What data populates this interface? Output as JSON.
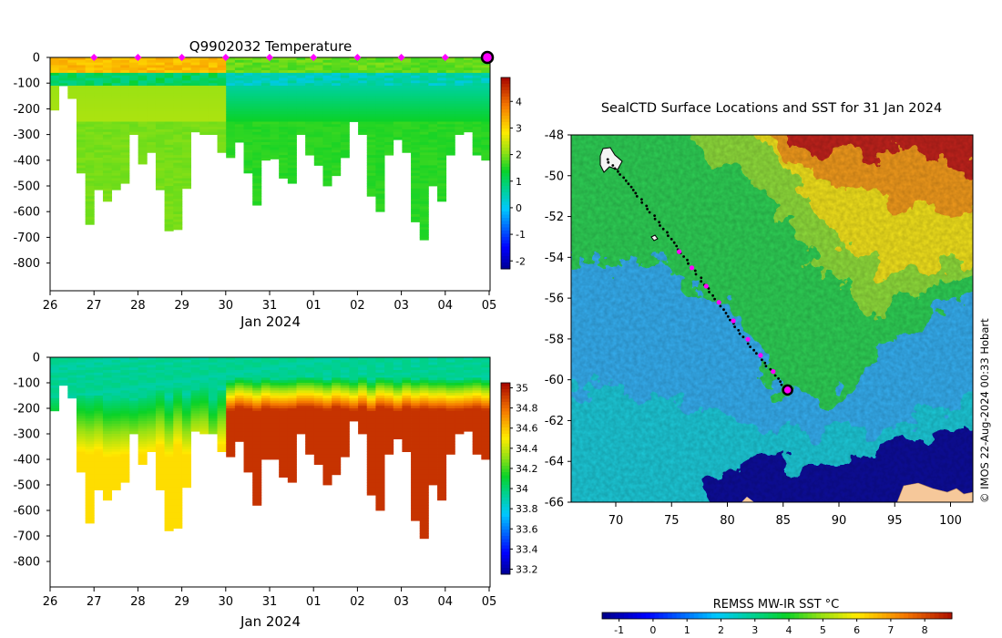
{
  "chart_data": [
    {
      "type": "heatmap",
      "title": "Q9902032  Temperature",
      "xlabel": "Jan 2024",
      "x_ticks": [
        "26",
        "27",
        "28",
        "29",
        "30",
        "31",
        "01",
        "02",
        "03",
        "04",
        "05"
      ],
      "y_ticks": [
        "0",
        "-100",
        "-200",
        "-300",
        "-400",
        "-500",
        "-600",
        "-700",
        "-800"
      ],
      "ylim": [
        -900,
        0
      ],
      "colorbar": {
        "ticks": [
          "4",
          "3",
          "2",
          "1",
          "0",
          "-1",
          "-2"
        ],
        "min": -2.3,
        "max": 4.9
      },
      "profile_depths": [
        -205,
        -110,
        -160,
        -450,
        -650,
        -515,
        -560,
        -515,
        -490,
        -300,
        -415,
        -370,
        -515,
        -675,
        -670,
        -510,
        -290,
        -300,
        -300,
        -370,
        -390,
        -330,
        -450,
        -575,
        -400,
        -395,
        -470,
        -490,
        -300,
        -380,
        -420,
        -500,
        -460,
        -390,
        -250,
        -300,
        -540,
        -600,
        -380,
        -320,
        -370,
        -640,
        -710,
        -500,
        -560,
        -380,
        -300,
        -290,
        -380,
        -400
      ],
      "segments": [
        {
          "days": [
            0,
            4.0
          ],
          "surface_temp": 3.3,
          "layer_temp": 1.8,
          "deep_temp": 2.0,
          "min_temp": 1.1
        },
        {
          "days": [
            4.0,
            9.9
          ],
          "surface_temp": 1.9,
          "layer_temp": 0.3,
          "deep_temp": 1.6,
          "min_temp": 0.5
        }
      ],
      "surface_markers": [
        "27",
        "28",
        "29",
        "30",
        "31",
        "01",
        "02",
        "03",
        "04"
      ],
      "current_marker": "05"
    },
    {
      "type": "heatmap",
      "title": "",
      "xlabel": "Jan 2024",
      "x_ticks": [
        "26",
        "27",
        "28",
        "29",
        "30",
        "31",
        "01",
        "02",
        "03",
        "04",
        "05"
      ],
      "y_ticks": [
        "0",
        "-100",
        "-200",
        "-300",
        "-400",
        "-500",
        "-600",
        "-700",
        "-800"
      ],
      "ylim": [
        -900,
        0
      ],
      "colorbar": {
        "ticks": [
          "35",
          "34.8",
          "34.6",
          "34.4",
          "34.2",
          "34",
          "33.8",
          "33.6",
          "33.4",
          "33.2"
        ],
        "min": 33.15,
        "max": 35.05
      },
      "segments": [
        {
          "days": [
            0,
            4.0
          ],
          "surface_sal": 33.95,
          "deep_sal": 34.5
        },
        {
          "days": [
            4.0,
            9.9
          ],
          "surface_sal": 33.95,
          "deep_sal": 34.9
        }
      ]
    },
    {
      "type": "heatmap",
      "title": "SealCTD Surface Locations and SST for 31 Jan 2024",
      "x_ticks": [
        "70",
        "75",
        "80",
        "85",
        "90",
        "95",
        "100"
      ],
      "y_ticks": [
        "-48",
        "-50",
        "-52",
        "-54",
        "-56",
        "-58",
        "-60",
        "-62",
        "-64",
        "-66"
      ],
      "xlim": [
        66,
        102
      ],
      "ylim": [
        -66,
        -48
      ],
      "colorbar_title": "REMSS MW-IR SST °C",
      "colorbar": {
        "ticks": [
          "-1",
          "0",
          "1",
          "2",
          "3",
          "4",
          "5",
          "6",
          "7",
          "8"
        ],
        "min": -1.5,
        "max": 8.8
      },
      "track": {
        "start": [
          69.2,
          -49.2
        ],
        "end": [
          85.4,
          -60.5
        ]
      },
      "current_location": [
        85.4,
        -60.5
      ],
      "credit": "© IMOS 22-Aug-2024 00:33 Hobart"
    }
  ]
}
